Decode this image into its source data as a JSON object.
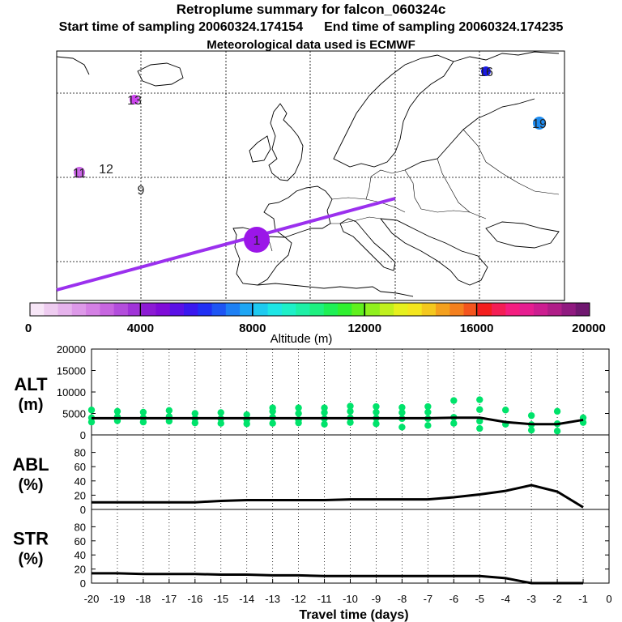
{
  "header": {
    "title": "Retroplume summary for falcon_060324c",
    "start_label": "Start time of sampling 20060324.174154",
    "end_label": "End time of sampling 20060324.174235",
    "met_label": "Meteorological data used is ECMWF"
  },
  "map": {
    "plume_markers": [
      {
        "label": "1",
        "color": "#9b16e8"
      },
      {
        "label": "9",
        "color": "#f4d6f4"
      },
      {
        "label": "11",
        "color": "#cc66e8"
      },
      {
        "label": "12",
        "color": "#f0c8f0"
      },
      {
        "label": "13",
        "color": "#cc44ee"
      },
      {
        "label": "16",
        "color": "#1a1ae6"
      },
      {
        "label": "19",
        "color": "#1e8cf0"
      }
    ],
    "track_color": "#9b30ee"
  },
  "colorbar": {
    "ticks": [
      "0",
      "4000",
      "8000",
      "12000",
      "16000",
      "20000"
    ],
    "label": "Altitude (m)",
    "colors": [
      "#f7e6f7",
      "#eeccf0",
      "#e6b3ec",
      "#dd99e8",
      "#d480e4",
      "#c766e0",
      "#b34ddc",
      "#a033d8",
      "#8c1ad4",
      "#7f0cd8",
      "#5a10e6",
      "#3a18ee",
      "#2030f4",
      "#1e55f4",
      "#1e80f4",
      "#1ea6f4",
      "#1ecaf0",
      "#1ee6e6",
      "#1ef0c8",
      "#1ef0a6",
      "#1ef080",
      "#1ef055",
      "#30f030",
      "#60f01e",
      "#90f01e",
      "#c0f01e",
      "#e6f01e",
      "#f4e61e",
      "#f4c81e",
      "#f4a01e",
      "#f4801e",
      "#f4551e",
      "#f41e1e",
      "#f41e55",
      "#f41e80",
      "#e61e90",
      "#cc1e90",
      "#b01e88",
      "#901a80",
      "#701870"
    ]
  },
  "chart_data": [
    {
      "type": "line",
      "ylabel": "ALT (m)",
      "ylim": [
        0,
        20000
      ],
      "yticks": [
        "0",
        "5000",
        "10000",
        "15000",
        "20000"
      ],
      "x": [
        -20,
        -19,
        -18,
        -17,
        -16,
        -15,
        -14,
        -13,
        -12,
        -11,
        -10,
        -9,
        -8,
        -7,
        -6,
        -5,
        -4,
        -3,
        -2,
        -1
      ],
      "series": [
        {
          "name": "mean altitude",
          "values": [
            3900,
            3900,
            3900,
            3900,
            3900,
            3900,
            3900,
            3900,
            3900,
            3900,
            3900,
            3900,
            3900,
            3900,
            4000,
            4000,
            3000,
            2500,
            2500,
            3500
          ]
        },
        {
          "name": "plume cluster altitudes",
          "color": "#00e36b",
          "points": [
            [
              -20,
              3000
            ],
            [
              -20,
              4000
            ],
            [
              -20,
              5800
            ],
            [
              -19,
              3300
            ],
            [
              -19,
              4200
            ],
            [
              -19,
              5500
            ],
            [
              -18,
              3000
            ],
            [
              -18,
              4000
            ],
            [
              -18,
              5300
            ],
            [
              -17,
              3200
            ],
            [
              -17,
              4300
            ],
            [
              -17,
              5700
            ],
            [
              -16,
              2800
            ],
            [
              -16,
              3800
            ],
            [
              -16,
              5000
            ],
            [
              -15,
              2700
            ],
            [
              -15,
              3800
            ],
            [
              -15,
              5200
            ],
            [
              -14,
              2600
            ],
            [
              -14,
              3500
            ],
            [
              -14,
              4700
            ],
            [
              -13,
              2700
            ],
            [
              -13,
              4100
            ],
            [
              -13,
              5500
            ],
            [
              -13,
              6300
            ],
            [
              -12,
              2800
            ],
            [
              -12,
              3500
            ],
            [
              -12,
              5000
            ],
            [
              -12,
              6300
            ],
            [
              -11,
              2500
            ],
            [
              -11,
              3800
            ],
            [
              -11,
              5200
            ],
            [
              -11,
              6300
            ],
            [
              -10,
              2900
            ],
            [
              -10,
              4000
            ],
            [
              -10,
              5500
            ],
            [
              -10,
              6700
            ],
            [
              -9,
              2600
            ],
            [
              -9,
              3900
            ],
            [
              -9,
              5300
            ],
            [
              -9,
              6600
            ],
            [
              -8,
              1800
            ],
            [
              -8,
              3800
            ],
            [
              -8,
              5200
            ],
            [
              -8,
              6400
            ],
            [
              -7,
              2200
            ],
            [
              -7,
              3800
            ],
            [
              -7,
              5300
            ],
            [
              -7,
              6600
            ],
            [
              -6,
              2700
            ],
            [
              -6,
              4100
            ],
            [
              -6,
              8000
            ],
            [
              -5,
              1500
            ],
            [
              -5,
              3200
            ],
            [
              -5,
              5900
            ],
            [
              -5,
              8200
            ],
            [
              -4,
              2500
            ],
            [
              -4,
              5800
            ],
            [
              -3,
              1100
            ],
            [
              -3,
              2400
            ],
            [
              -3,
              4500
            ],
            [
              -2,
              900
            ],
            [
              -2,
              2600
            ],
            [
              -2,
              5500
            ],
            [
              -1,
              2900
            ],
            [
              -1,
              4000
            ]
          ]
        }
      ]
    },
    {
      "type": "line",
      "ylabel": "ABL (%)",
      "ylim": [
        0,
        100
      ],
      "yticks": [
        "0",
        "20",
        "40",
        "60",
        "80"
      ],
      "x": [
        -20,
        -19,
        -18,
        -17,
        -16,
        -15,
        -14,
        -13,
        -12,
        -11,
        -10,
        -9,
        -8,
        -7,
        -6,
        -5,
        -4,
        -3,
        -2,
        -1
      ],
      "series": [
        {
          "name": "ABL fraction",
          "values": [
            10,
            10,
            10,
            10,
            10,
            12,
            13,
            13,
            13,
            13,
            14,
            14,
            14,
            14,
            17,
            21,
            26,
            34,
            25,
            3
          ]
        }
      ]
    },
    {
      "type": "line",
      "ylabel": "STR (%)",
      "xlabel": "Travel time (days)",
      "ylim": [
        0,
        100
      ],
      "yticks": [
        "0",
        "20",
        "40",
        "60",
        "80"
      ],
      "xticks": [
        "-20",
        "-19",
        "-18",
        "-17",
        "-16",
        "-15",
        "-14",
        "-13",
        "-12",
        "-11",
        "-10",
        "-9",
        "-8",
        "-7",
        "-6",
        "-5",
        "-4",
        "-3",
        "-2",
        "-1",
        "0"
      ],
      "x": [
        -20,
        -19,
        -18,
        -17,
        -16,
        -15,
        -14,
        -13,
        -12,
        -11,
        -10,
        -9,
        -8,
        -7,
        -6,
        -5,
        -4,
        -3,
        -2,
        -1
      ],
      "series": [
        {
          "name": "STR fraction",
          "values": [
            14,
            14,
            13,
            13,
            13,
            12,
            12,
            11,
            11,
            10,
            10,
            10,
            10,
            10,
            10,
            10,
            7,
            0,
            0,
            0
          ]
        }
      ]
    }
  ]
}
